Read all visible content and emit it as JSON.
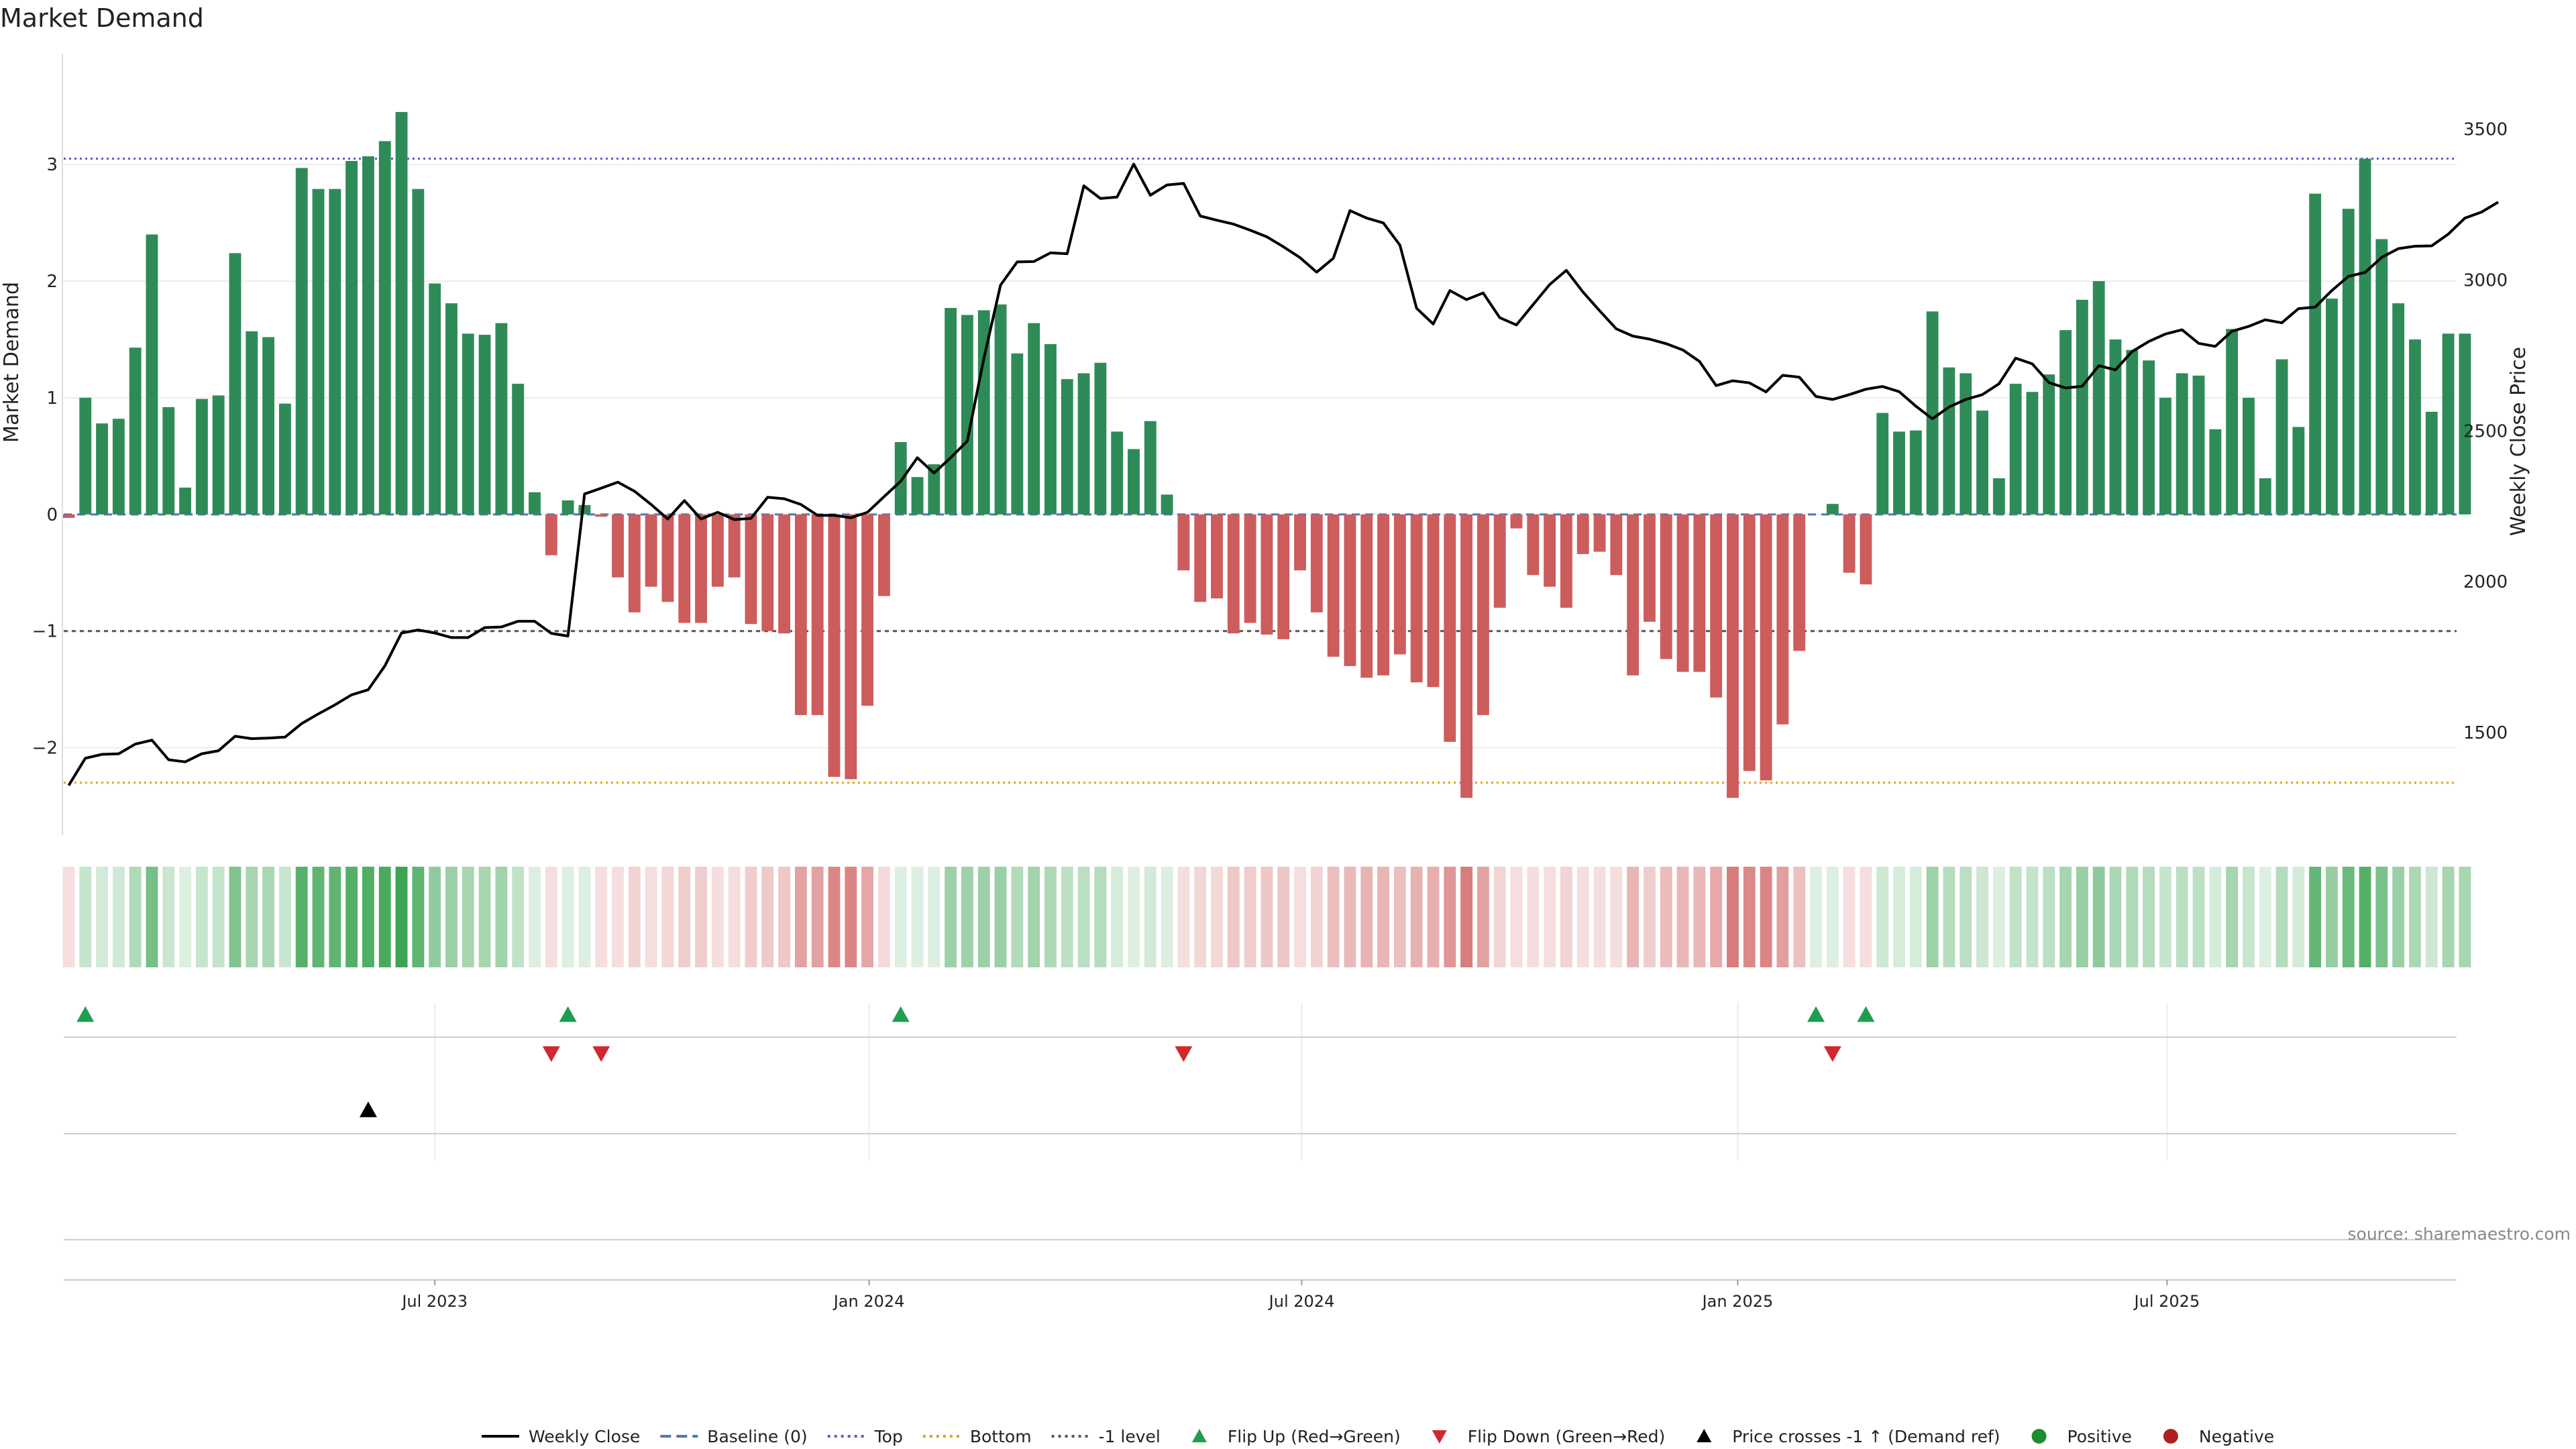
{
  "chart_data": {
    "type": "bar",
    "title": "Market Demand",
    "ylabel": "Market Demand",
    "y2label": "Weekly Close Price",
    "ylim": [
      -2.75,
      3.95
    ],
    "y2lim": [
      1160,
      3750
    ],
    "yticks": [
      3,
      2,
      1,
      0,
      -1,
      -2
    ],
    "yticks_labels": [
      "3",
      "2",
      "1",
      "0",
      "−1",
      "−2"
    ],
    "y2ticks": [
      3500,
      3000,
      2500,
      2000,
      1500
    ],
    "y2ticks_labels": [
      "3500",
      "3000",
      "2500",
      "2000",
      "1500"
    ],
    "x_start": "2023-01-29",
    "x_range_weeks": [
      -0.3,
      143.5
    ],
    "xticks": [
      {
        "label": "Jul 2023",
        "week": 22
      },
      {
        "label": "Jan 2024",
        "week": 48.1
      },
      {
        "label": "Jul 2024",
        "week": 74.1
      },
      {
        "label": "Jan 2025",
        "week": 100.3
      },
      {
        "label": "Jul 2025",
        "week": 126.1
      }
    ],
    "reference_lines": [
      {
        "name": "Top",
        "value": 3.05,
        "color": "#5b5bd6"
      },
      {
        "name": "Bottom",
        "value": -2.3,
        "color": "#e0a020"
      },
      {
        "name": "-1 level",
        "value": -1,
        "color": "#555555"
      },
      {
        "name": "Baseline (0)",
        "value": 0,
        "color": "#4a78b8"
      }
    ],
    "series": [
      {
        "name": "Market Demand",
        "kind": "bar",
        "values": [
          -0.03,
          1.0,
          0.78,
          0.82,
          1.43,
          2.4,
          0.92,
          0.23,
          0.99,
          1.02,
          2.24,
          1.57,
          1.52,
          0.95,
          2.97,
          2.79,
          2.79,
          3.03,
          3.07,
          3.2,
          3.45,
          2.79,
          1.98,
          1.81,
          1.55,
          1.54,
          1.64,
          1.12,
          0.19,
          -0.35,
          0.12,
          0.08,
          -0.02,
          -0.54,
          -0.84,
          -0.62,
          -0.75,
          -0.93,
          -0.93,
          -0.62,
          -0.54,
          -0.94,
          -1.0,
          -1.02,
          -1.72,
          -1.72,
          -2.25,
          -2.27,
          -1.64,
          -0.7,
          0.62,
          0.32,
          0.43,
          1.77,
          1.71,
          1.75,
          1.8,
          1.38,
          1.64,
          1.46,
          1.16,
          1.21,
          1.3,
          0.71,
          0.56,
          0.8,
          0.17,
          -0.48,
          -0.75,
          -0.72,
          -1.02,
          -0.93,
          -1.03,
          -1.07,
          -0.48,
          -0.84,
          -1.22,
          -1.3,
          -1.4,
          -1.38,
          -1.2,
          -1.44,
          -1.48,
          -1.95,
          -2.43,
          -1.72,
          -0.8,
          -0.12,
          -0.52,
          -0.62,
          -0.8,
          -0.34,
          -0.32,
          -0.52,
          -1.38,
          -0.92,
          -1.24,
          -1.35,
          -1.35,
          -1.57,
          -2.43,
          -2.2,
          -2.28,
          -1.8,
          -1.17,
          0.0,
          0.09,
          -0.5,
          -0.6,
          0.87,
          0.71,
          0.72,
          1.74,
          1.26,
          1.21,
          0.89,
          0.31,
          1.12,
          1.05,
          1.2,
          1.58,
          1.84,
          2.0,
          1.5,
          1.41,
          1.32,
          1.0,
          1.21,
          1.19,
          0.73,
          1.59,
          1.0,
          0.31,
          1.33,
          0.75,
          2.75,
          1.85,
          2.62,
          3.05,
          2.36,
          1.81,
          1.5,
          0.88,
          1.55,
          1.55
        ]
      },
      {
        "name": "Weekly Close",
        "kind": "line",
        "axis": "right",
        "values": [
          1325,
          1415,
          1428,
          1430,
          1462,
          1475,
          1410,
          1403,
          1430,
          1440,
          1488,
          1480,
          1482,
          1485,
          1530,
          1562,
          1592,
          1625,
          1642,
          1721,
          1830,
          1840,
          1830,
          1815,
          1815,
          1848,
          1850,
          1869,
          1869,
          1829,
          1820,
          2291,
          2310,
          2330,
          2300,
          2256,
          2208,
          2269,
          2208,
          2230,
          2206,
          2210,
          2280,
          2275,
          2256,
          2220,
          2220,
          2212,
          2230,
          2282,
          2333,
          2411,
          2360,
          2411,
          2466,
          2741,
          2983,
          3060,
          3061,
          3090,
          3087,
          3312,
          3270,
          3275,
          3384,
          3281,
          3315,
          3320,
          3212,
          3198,
          3185,
          3165,
          3143,
          3110,
          3074,
          3026,
          3072,
          3230,
          3205,
          3189,
          3115,
          2906,
          2854,
          2965,
          2935,
          2957,
          2875,
          2851,
          2918,
          2985,
          3032,
          2960,
          2898,
          2838,
          2814,
          2804,
          2789,
          2768,
          2730,
          2650,
          2666,
          2659,
          2629,
          2684,
          2678,
          2614,
          2604,
          2620,
          2638,
          2647,
          2630,
          2582,
          2540,
          2579,
          2604,
          2620,
          2656,
          2741,
          2722,
          2660,
          2642,
          2648,
          2716,
          2702,
          2763,
          2796,
          2821,
          2835,
          2790,
          2780,
          2830,
          2846,
          2868,
          2858,
          2905,
          2910,
          2965,
          3012,
          3025,
          3075,
          3104,
          3112,
          3113,
          3152,
          3205,
          3225,
          3258
        ]
      },
      {
        "name": "Flip Up (Red→Green)",
        "kind": "marker",
        "row": "flip-up",
        "weeks": [
          1,
          30,
          50,
          105,
          108
        ]
      },
      {
        "name": "Flip Down (Green→Red)",
        "kind": "marker",
        "row": "flip-down",
        "weeks": [
          29,
          32,
          67,
          106
        ]
      },
      {
        "name": "Price crosses -1 ↑ (Demand ref)",
        "kind": "marker",
        "row": "cross",
        "weeks": [
          18
        ]
      }
    ],
    "legend_position": "bottom-center",
    "legend": [
      {
        "label": "Weekly Close",
        "type": "line",
        "color": "#000000"
      },
      {
        "label": "Baseline (0)",
        "type": "dash",
        "color": "#4a78b8"
      },
      {
        "label": "Top",
        "type": "dot",
        "color": "#5b5bd6"
      },
      {
        "label": "Bottom",
        "type": "dot",
        "color": "#e0a020"
      },
      {
        "label": "-1 level",
        "type": "dot",
        "color": "#555555"
      },
      {
        "label": "Flip Up (Red→Green)",
        "type": "tri-up",
        "color": "#1f9e50"
      },
      {
        "label": "Flip Down (Green→Red)",
        "type": "tri-down",
        "color": "#d0282e"
      },
      {
        "label": "Price crosses -1 ↑ (Demand ref)",
        "type": "tri-up",
        "color": "#000000"
      },
      {
        "label": "Positive",
        "type": "circle",
        "color": "#1e8c30"
      },
      {
        "label": "Negative",
        "type": "circle",
        "color": "#b02020"
      }
    ],
    "colors": {
      "positive_bar": "#2e8b57",
      "negative_bar": "#cd5c5c",
      "heat_positive": "#3ca452",
      "heat_negative": "#c84646",
      "line": "#000000"
    },
    "annotations": [
      "source: sharemaestro.com"
    ]
  }
}
